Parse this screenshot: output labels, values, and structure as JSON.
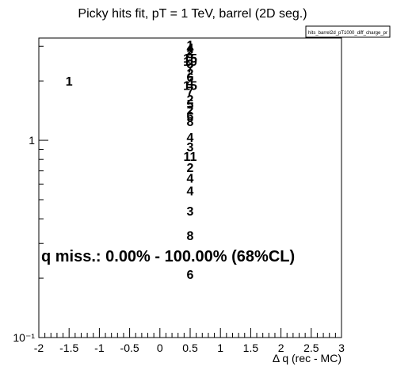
{
  "chart_data": {
    "type": "scatter",
    "title": "Picky hits fit, pT = 1 TeV, barrel (2D seg.)",
    "stats_box": "hits_barrel2d_pT1000_diff_charge_pr",
    "xlabel": "Δ q (rec - MC)",
    "ylabel": "",
    "xlim": [
      -2,
      3
    ],
    "ylim": [
      0.1,
      3.3
    ],
    "ylog": true,
    "x_tick_labels": [
      "-2",
      "-1.5",
      "-1",
      "-0.5",
      "0",
      "0.5",
      "1",
      "1.5",
      "2",
      "2.5",
      "3"
    ],
    "y_tick_labels": [
      {
        "value": 1,
        "text": "1"
      },
      {
        "value": 0.1,
        "text": "10⁻¹"
      }
    ],
    "grid": false,
    "legend": "none",
    "points": [
      {
        "x": -1.5,
        "y": 2.0,
        "label": "1"
      },
      {
        "x": 0.5,
        "y": 3.05,
        "label": "1"
      },
      {
        "x": 0.5,
        "y": 2.95,
        "label": "4"
      },
      {
        "x": 0.5,
        "y": 2.85,
        "label": "2"
      },
      {
        "x": 0.5,
        "y": 2.75,
        "label": "3"
      },
      {
        "x": 0.5,
        "y": 2.62,
        "label": "15"
      },
      {
        "x": 0.5,
        "y": 2.52,
        "label": "10"
      },
      {
        "x": 0.5,
        "y": 2.45,
        "label": "3"
      },
      {
        "x": 0.5,
        "y": 2.33,
        "label": "7"
      },
      {
        "x": 0.5,
        "y": 2.2,
        "label": "2"
      },
      {
        "x": 0.5,
        "y": 2.1,
        "label": "6"
      },
      {
        "x": 0.5,
        "y": 1.97,
        "label": "4"
      },
      {
        "x": 0.5,
        "y": 1.9,
        "label": "15"
      },
      {
        "x": 0.5,
        "y": 1.78,
        "label": "7"
      },
      {
        "x": 0.5,
        "y": 1.62,
        "label": "2"
      },
      {
        "x": 0.5,
        "y": 1.53,
        "label": "5"
      },
      {
        "x": 0.5,
        "y": 1.43,
        "label": "2"
      },
      {
        "x": 0.5,
        "y": 1.33,
        "label": "6"
      },
      {
        "x": 0.5,
        "y": 1.25,
        "label": "8"
      },
      {
        "x": 0.5,
        "y": 1.04,
        "label": "4"
      },
      {
        "x": 0.5,
        "y": 0.93,
        "label": "3"
      },
      {
        "x": 0.5,
        "y": 0.83,
        "label": "11"
      },
      {
        "x": 0.5,
        "y": 0.73,
        "label": "2"
      },
      {
        "x": 0.5,
        "y": 0.645,
        "label": "4"
      },
      {
        "x": 0.5,
        "y": 0.555,
        "label": "4"
      },
      {
        "x": 0.5,
        "y": 0.44,
        "label": "3"
      },
      {
        "x": 0.5,
        "y": 0.33,
        "label": "8"
      },
      {
        "x": 0.5,
        "y": 0.21,
        "label": "6"
      }
    ],
    "annotations": [
      "q miss.: 0.00% - 100.00% (68%CL)"
    ]
  }
}
